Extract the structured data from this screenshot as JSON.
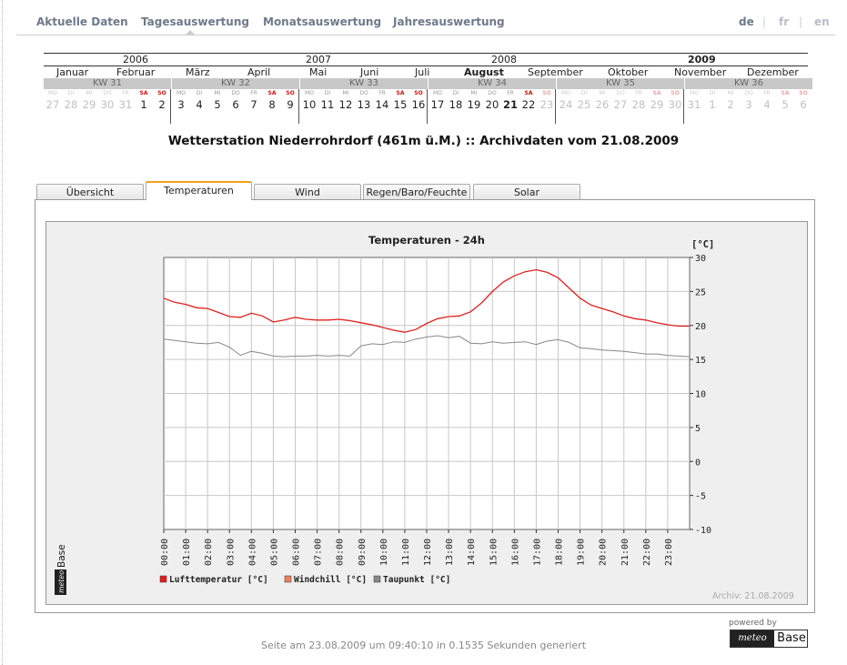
{
  "nav": {
    "items": [
      "Aktuelle Daten",
      "Tagesauswertung",
      "Monatsauswertung",
      "Jahresauswertung"
    ],
    "active_index": 1,
    "languages": [
      "de",
      "fr",
      "en"
    ],
    "active_language": "de"
  },
  "calendar": {
    "years": [
      "2006",
      "2007",
      "2008",
      "2009"
    ],
    "current_year": "2009",
    "months": [
      "Januar",
      "Februar",
      "März",
      "April",
      "Mai",
      "Juni",
      "Juli",
      "August",
      "September",
      "Oktober",
      "November",
      "Dezember"
    ],
    "current_month": "August",
    "weeks": [
      {
        "label": "KW 31",
        "days": [
          "27",
          "28",
          "29",
          "30",
          "31",
          "1",
          "2"
        ],
        "dim_count": 5,
        "dim_end": false
      },
      {
        "label": "KW 32",
        "days": [
          "3",
          "4",
          "5",
          "6",
          "7",
          "8",
          "9"
        ],
        "dim_count": 0,
        "dim_end": false
      },
      {
        "label": "KW 33",
        "days": [
          "10",
          "11",
          "12",
          "13",
          "14",
          "15",
          "16"
        ],
        "dim_count": 0,
        "dim_end": false
      },
      {
        "label": "KW 34",
        "days": [
          "17",
          "18",
          "19",
          "20",
          "21",
          "22",
          "23"
        ],
        "dim_count": 1,
        "dim_end": true
      },
      {
        "label": "KW 35",
        "days": [
          "24",
          "25",
          "26",
          "27",
          "28",
          "29",
          "30"
        ],
        "dim_count": 7,
        "dim_end": true
      },
      {
        "label": "KW 36",
        "days": [
          "31",
          "1",
          "2",
          "3",
          "4",
          "5",
          "6"
        ],
        "dim_count": 7,
        "dim_end": true
      }
    ],
    "weekday_labels": [
      "MO",
      "DI",
      "MI",
      "DO",
      "FR",
      "SA",
      "SO"
    ],
    "selected_day": "21"
  },
  "page_title": "Wetterstation Niederrohrdorf (461m ü.M.) :: Archivdaten vom 21.08.2009",
  "tabs": [
    "Übersicht",
    "Temperaturen",
    "Wind",
    "Regen/Baro/Feuchte",
    "Solar"
  ],
  "active_tab": "Temperaturen",
  "archive_label": "Archiv: 21.08.2009",
  "footer_text": "Seite am 23.08.2009 um 09:40:10 in 0.1535 Sekunden generiert",
  "powered_by": "powered by",
  "logo": {
    "left": "meteo",
    "right": "Base"
  },
  "colors": {
    "luft": "#e02020",
    "windchill": "#f08060",
    "taupunkt": "#888888",
    "tab_accent": "#f0a020",
    "weekend": "#d01010"
  },
  "chart_data": {
    "type": "line",
    "title": "Temperaturen - 24h",
    "ylabel": "[°C]",
    "ylim": [
      -10,
      30
    ],
    "yticks": [
      30,
      25,
      20,
      15,
      10,
      5,
      0,
      -5,
      -10
    ],
    "xlim": [
      0,
      24
    ],
    "xticks": [
      "00:00",
      "01:00",
      "02:00",
      "03:00",
      "04:00",
      "05:00",
      "06:00",
      "07:00",
      "08:00",
      "09:00",
      "10:00",
      "11:00",
      "12:00",
      "13:00",
      "14:00",
      "15:00",
      "16:00",
      "17:00",
      "18:00",
      "19:00",
      "20:00",
      "21:00",
      "22:00",
      "23:00"
    ],
    "grid": true,
    "legend_position": "bottom-left",
    "series": [
      {
        "name": "Lufttemperatur [°C]",
        "color_key": "luft",
        "x": [
          0,
          0.5,
          1,
          1.5,
          2,
          2.5,
          3,
          3.5,
          4,
          4.5,
          5,
          5.5,
          6,
          6.5,
          7,
          7.5,
          8,
          8.5,
          9,
          9.5,
          10,
          10.5,
          11,
          11.5,
          12,
          12.5,
          13,
          13.5,
          14,
          14.5,
          15,
          15.5,
          16,
          16.5,
          17,
          17.5,
          18,
          18.5,
          19,
          19.5,
          20,
          20.5,
          21,
          21.5,
          22,
          22.5,
          23,
          23.5,
          24
        ],
        "y": [
          24.0,
          23.4,
          23.1,
          22.6,
          22.5,
          21.9,
          21.3,
          21.2,
          21.8,
          21.4,
          20.5,
          20.8,
          21.2,
          20.9,
          20.8,
          20.8,
          20.9,
          20.7,
          20.4,
          20.1,
          19.7,
          19.3,
          19.0,
          19.4,
          20.3,
          21.0,
          21.3,
          21.4,
          22.0,
          23.3,
          25.0,
          26.4,
          27.3,
          27.9,
          28.2,
          27.8,
          27.0,
          25.5,
          24.0,
          23.0,
          22.5,
          22.0,
          21.4,
          21.0,
          20.8,
          20.4,
          20.1,
          19.9,
          19.9
        ]
      },
      {
        "name": "Windchill [°C]",
        "color_key": "windchill",
        "x": [],
        "y": []
      },
      {
        "name": "Taupunkt [°C]",
        "color_key": "taupunkt",
        "x": [
          0,
          0.5,
          1,
          1.5,
          2,
          2.5,
          3,
          3.5,
          4,
          4.5,
          5,
          5.5,
          6,
          6.5,
          7,
          7.5,
          8,
          8.5,
          9,
          9.5,
          10,
          10.5,
          11,
          11.5,
          12,
          12.5,
          13,
          13.5,
          14,
          14.5,
          15,
          15.5,
          16,
          16.5,
          17,
          17.5,
          18,
          18.5,
          19,
          19.5,
          20,
          20.5,
          21,
          21.5,
          22,
          22.5,
          23,
          23.5,
          24
        ],
        "y": [
          18.0,
          17.8,
          17.6,
          17.4,
          17.3,
          17.5,
          16.8,
          15.6,
          16.2,
          15.9,
          15.5,
          15.4,
          15.5,
          15.5,
          15.6,
          15.5,
          15.6,
          15.5,
          17.0,
          17.3,
          17.2,
          17.6,
          17.5,
          18.0,
          18.3,
          18.5,
          18.2,
          18.4,
          17.4,
          17.3,
          17.6,
          17.4,
          17.5,
          17.6,
          17.2,
          17.7,
          17.9,
          17.5,
          16.7,
          16.6,
          16.4,
          16.3,
          16.2,
          16.0,
          15.8,
          15.8,
          15.6,
          15.5,
          15.4
        ]
      }
    ]
  }
}
